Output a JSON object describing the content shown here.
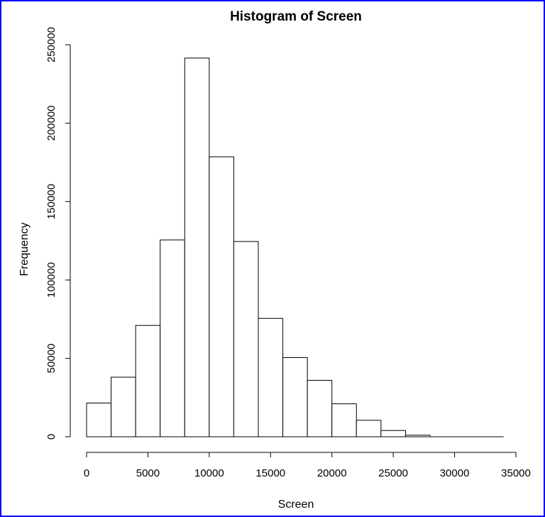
{
  "colors": {
    "frame_border": "#0000ff",
    "bar_fill": "#ffffff",
    "bar_stroke": "#000000"
  },
  "chart_data": {
    "type": "bar",
    "title": "Histogram of Screen",
    "xlabel": "Screen",
    "ylabel": "Frequency",
    "bin_width": 2000,
    "bins": [
      {
        "x0": 0,
        "x1": 2000,
        "count": 21500
      },
      {
        "x0": 2000,
        "x1": 4000,
        "count": 38000
      },
      {
        "x0": 4000,
        "x1": 6000,
        "count": 71000
      },
      {
        "x0": 6000,
        "x1": 8000,
        "count": 125500
      },
      {
        "x0": 8000,
        "x1": 10000,
        "count": 241500
      },
      {
        "x0": 10000,
        "x1": 12000,
        "count": 178500
      },
      {
        "x0": 12000,
        "x1": 14000,
        "count": 124500
      },
      {
        "x0": 14000,
        "x1": 16000,
        "count": 75500
      },
      {
        "x0": 16000,
        "x1": 18000,
        "count": 50500
      },
      {
        "x0": 18000,
        "x1": 20000,
        "count": 36000
      },
      {
        "x0": 20000,
        "x1": 22000,
        "count": 21000
      },
      {
        "x0": 22000,
        "x1": 24000,
        "count": 10500
      },
      {
        "x0": 24000,
        "x1": 26000,
        "count": 4000
      },
      {
        "x0": 26000,
        "x1": 28000,
        "count": 1000
      },
      {
        "x0": 28000,
        "x1": 30000,
        "count": 200
      },
      {
        "x0": 30000,
        "x1": 32000,
        "count": 50
      },
      {
        "x0": 32000,
        "x1": 34000,
        "count": 10
      }
    ],
    "xlim": [
      0,
      35000
    ],
    "ylim": [
      0,
      250000
    ],
    "x_ticks": [
      "0",
      "5000",
      "10000",
      "15000",
      "20000",
      "25000",
      "30000",
      "35000"
    ],
    "y_ticks": [
      "0",
      "50000",
      "100000",
      "150000",
      "200000",
      "250000"
    ],
    "grid": false,
    "legend": "none"
  }
}
